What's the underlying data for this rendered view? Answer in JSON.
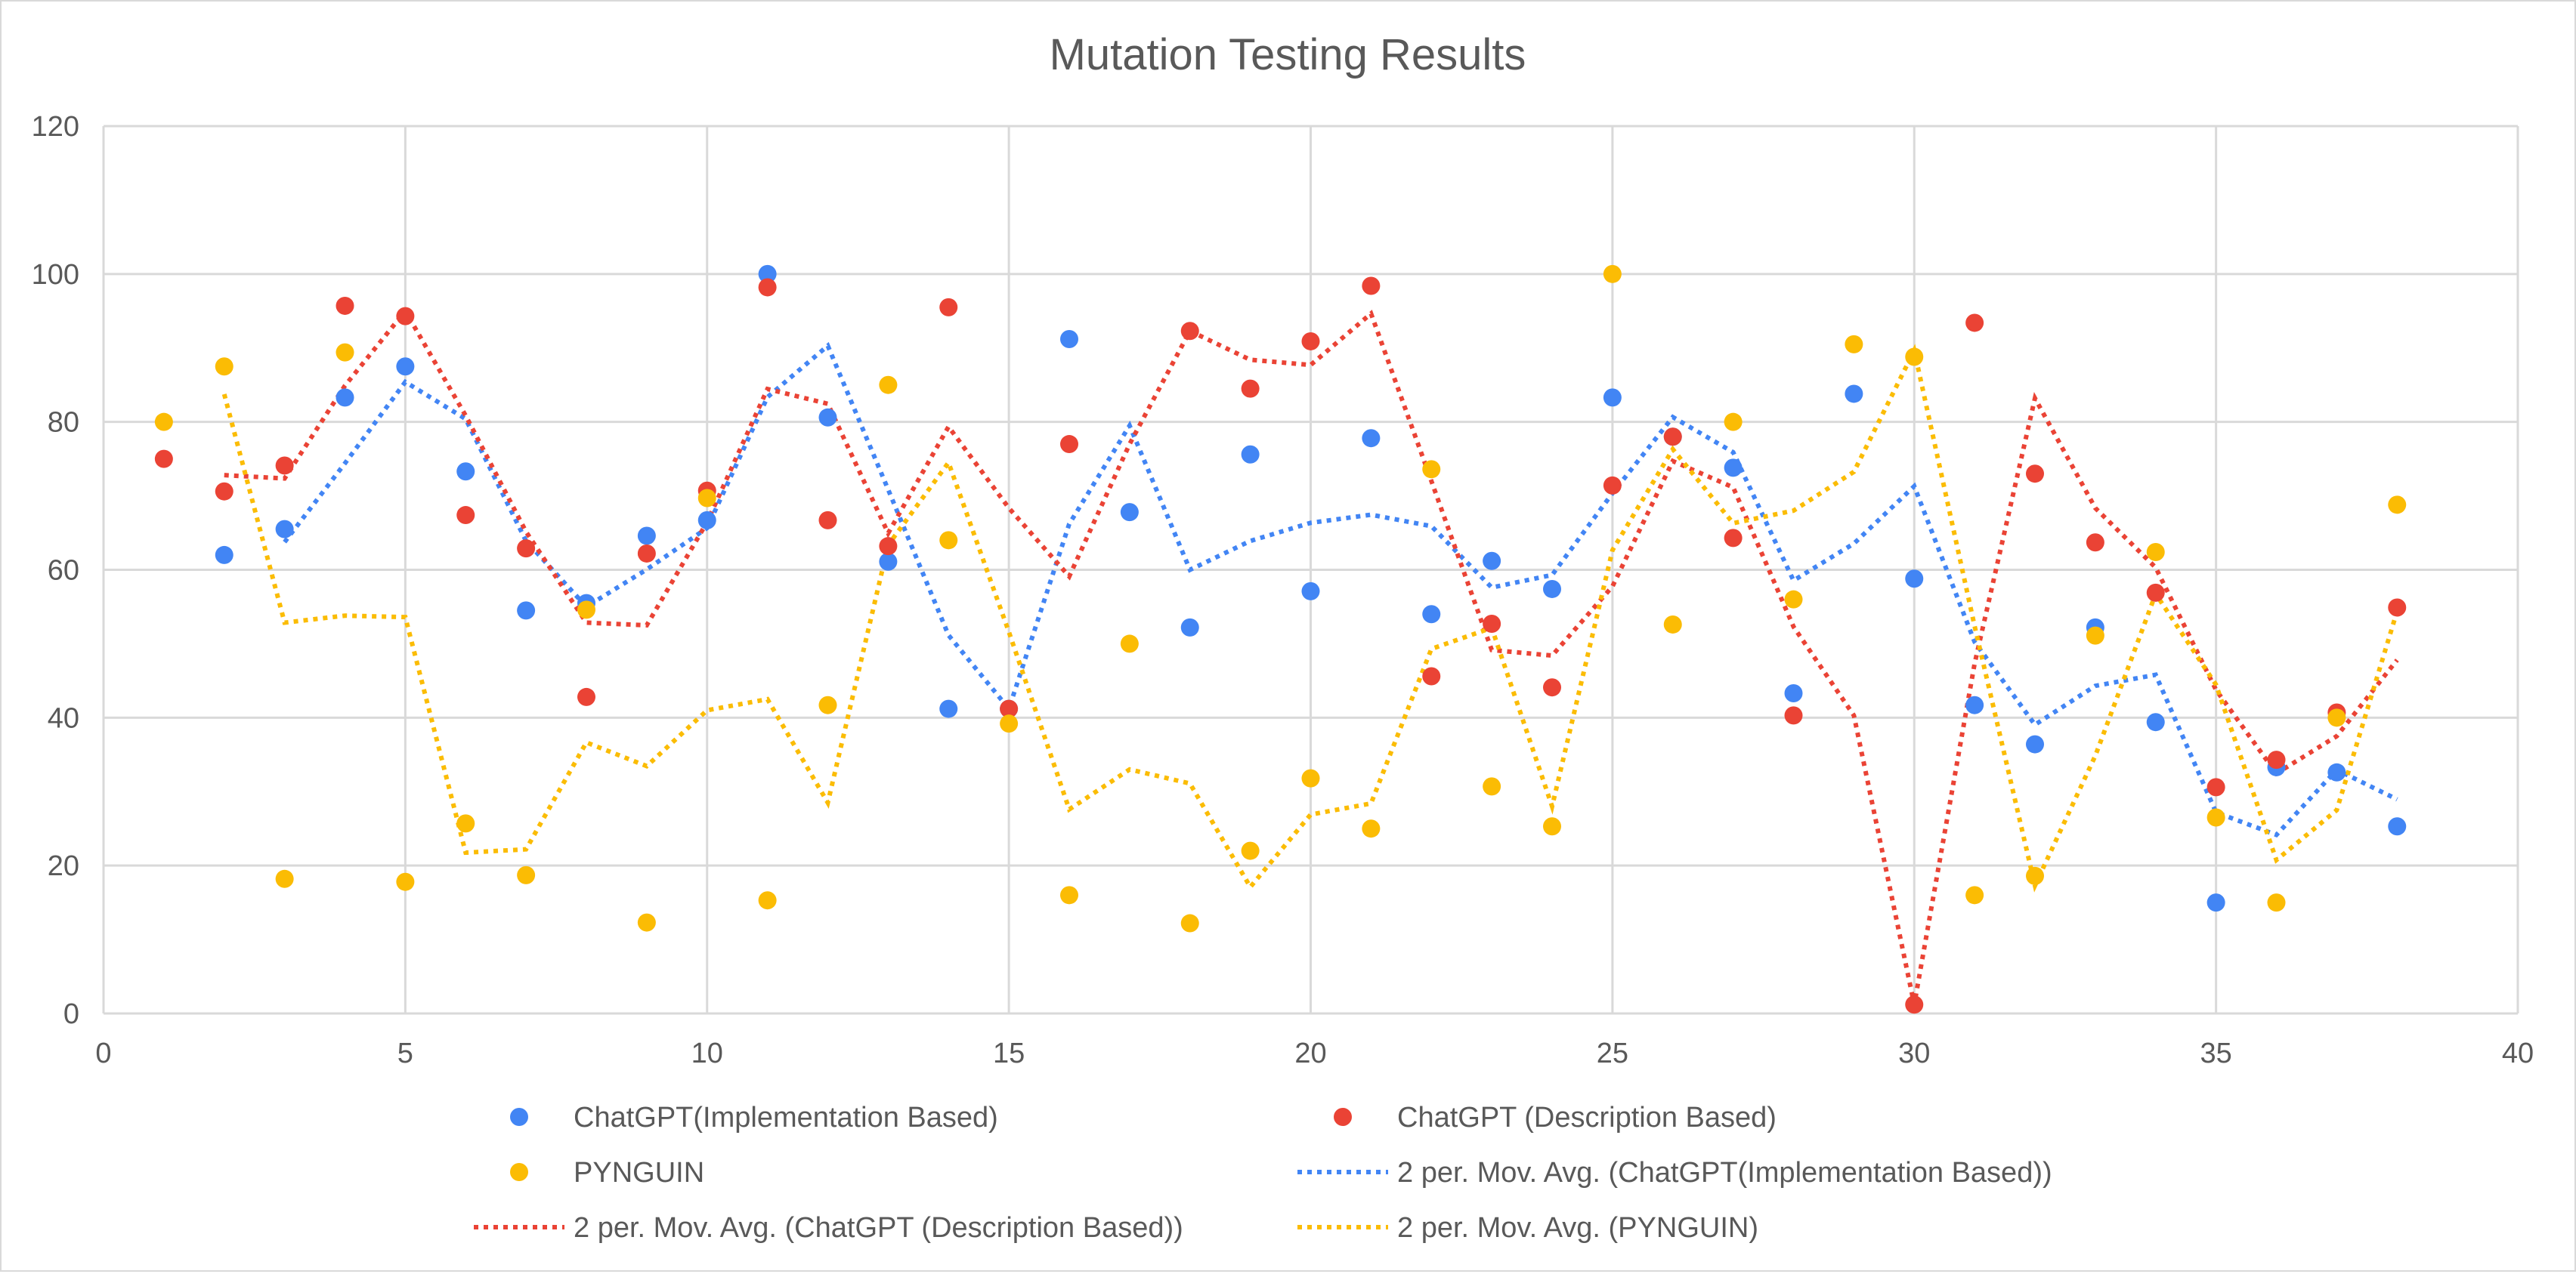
{
  "chart_data": {
    "type": "scatter",
    "title": "Mutation Testing Results",
    "xlabel": "",
    "ylabel": "",
    "xlim": [
      0,
      40
    ],
    "ylim": [
      0,
      120
    ],
    "xticks": [
      0,
      5,
      10,
      15,
      20,
      25,
      30,
      35,
      40
    ],
    "yticks": [
      0,
      20,
      40,
      60,
      80,
      100,
      120
    ],
    "grid": true,
    "legend_position": "bottom",
    "series": [
      {
        "name": "ChatGPT(Implementation Based)",
        "color": "#4285f4",
        "x": [
          2,
          3,
          4,
          5,
          6,
          7,
          8,
          9,
          10,
          11,
          12,
          13,
          14,
          15,
          16,
          17,
          18,
          19,
          20,
          21,
          22,
          23,
          24,
          25,
          26,
          27,
          28,
          29,
          30,
          31,
          32,
          33,
          34,
          35,
          36,
          37,
          38
        ],
        "values": [
          62,
          65.5,
          83.3,
          87.5,
          73.3,
          54.5,
          55.5,
          64.6,
          66.7,
          100,
          80.6,
          61.1,
          41.2,
          41.2,
          91.2,
          67.8,
          52.2,
          75.6,
          57.1,
          77.8,
          54,
          61.2,
          57.4,
          83.3,
          78,
          73.8,
          43.3,
          83.8,
          58.8,
          41.7,
          36.4,
          52.2,
          39.4,
          15,
          33.3,
          32.6,
          25.3
        ]
      },
      {
        "name": "ChatGPT (Description Based)",
        "color": "#ea4335",
        "x": [
          1,
          2,
          3,
          4,
          5,
          6,
          7,
          8,
          9,
          10,
          11,
          12,
          13,
          14,
          15,
          16,
          17,
          18,
          19,
          20,
          21,
          22,
          23,
          24,
          25,
          26,
          27,
          28,
          29,
          30,
          31,
          32,
          33,
          34,
          35,
          36,
          37,
          38
        ],
        "values": [
          75,
          70.6,
          74.1,
          95.7,
          94.3,
          67.4,
          62.9,
          42.8,
          62.2,
          70.7,
          98.2,
          66.7,
          63.2,
          95.5,
          41.2,
          77,
          null,
          92.3,
          84.5,
          90.9,
          98.4,
          45.6,
          52.7,
          44.1,
          71.4,
          78,
          64.3,
          40.3,
          null,
          1.2,
          93.4,
          73,
          63.7,
          56.9,
          30.6,
          34.3,
          40.7,
          54.9
        ]
      },
      {
        "name": "PYNGUIN",
        "color": "#fbbc04",
        "x": [
          1,
          2,
          3,
          4,
          5,
          6,
          7,
          8,
          9,
          10,
          11,
          12,
          13,
          14,
          15,
          16,
          17,
          18,
          19,
          20,
          21,
          22,
          23,
          24,
          25,
          26,
          27,
          28,
          29,
          30,
          31,
          32,
          33,
          34,
          35,
          36,
          37,
          38
        ],
        "values": [
          80,
          87.5,
          18.2,
          89.4,
          17.8,
          25.7,
          18.7,
          54.6,
          12.3,
          69.7,
          15.3,
          41.7,
          85,
          64,
          39.2,
          16,
          50,
          12.2,
          22,
          31.8,
          25,
          73.6,
          30.7,
          25.3,
          100,
          52.6,
          80,
          56,
          90.5,
          88.8,
          16,
          18.6,
          51.1,
          62.4,
          26.5,
          15,
          40,
          68.8
        ]
      }
    ],
    "trendlines": [
      {
        "name": "2 per. Mov. Avg. (ChatGPT(Implementation Based))",
        "color": "#4285f4",
        "type": "moving-average",
        "period": 2,
        "of_series": 0
      },
      {
        "name": "2 per. Mov. Avg. (ChatGPT (Description Based))",
        "color": "#ea4335",
        "type": "moving-average",
        "period": 2,
        "of_series": 1
      },
      {
        "name": "2 per. Mov. Avg. (PYNGUIN)",
        "color": "#fbbc04",
        "type": "moving-average",
        "period": 2,
        "of_series": 2
      }
    ]
  }
}
